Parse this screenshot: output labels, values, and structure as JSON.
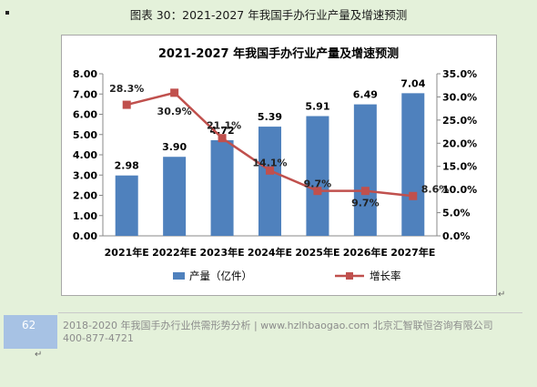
{
  "page": {
    "title": "图表  30：2021-2027 年我国手办行业产量及增速预测",
    "page_number": "62",
    "footer_line1": "2018-2020 年我国手办行业供需形势分析 | www.hzlhbaogao.com 北京汇智联恒咨询有限公司",
    "footer_line2": "400-877-4721",
    "return_mark": "↵"
  },
  "chart_data": {
    "type": "bar",
    "title": "2021-2027 年我国手办行业产量及增速预测",
    "categories": [
      "2021年E",
      "2022年E",
      "2023年E",
      "2024年E",
      "2025年E",
      "2026年E",
      "2027年E"
    ],
    "series": [
      {
        "name": "产量（亿件）",
        "type": "bar",
        "axis": "left",
        "color": "#4f81bd",
        "values": [
          2.98,
          3.9,
          4.72,
          5.39,
          5.91,
          6.49,
          7.04
        ],
        "labels": [
          "2.98",
          "3.90",
          "4.72",
          "5.39",
          "5.91",
          "6.49",
          "7.04"
        ]
      },
      {
        "name": "增长率",
        "type": "line",
        "axis": "right",
        "color": "#c0504d",
        "values": [
          28.3,
          30.9,
          21.1,
          14.1,
          9.7,
          9.7,
          8.6
        ],
        "labels": [
          "28.3%",
          "30.9%",
          "21.1%",
          "14.1%",
          "9.7%",
          "9.7%",
          "8.6%"
        ]
      }
    ],
    "y_left": {
      "ylim": [
        0,
        8
      ],
      "ticks": [
        "0.00",
        "1.00",
        "2.00",
        "3.00",
        "4.00",
        "5.00",
        "6.00",
        "7.00",
        "8.00"
      ]
    },
    "y_right": {
      "ylim": [
        0,
        35
      ],
      "ticks": [
        "0.0%",
        "5.0%",
        "10.0%",
        "15.0%",
        "20.0%",
        "25.0%",
        "30.0%",
        "35.0%"
      ]
    },
    "grid": false,
    "legend": "bottom"
  }
}
